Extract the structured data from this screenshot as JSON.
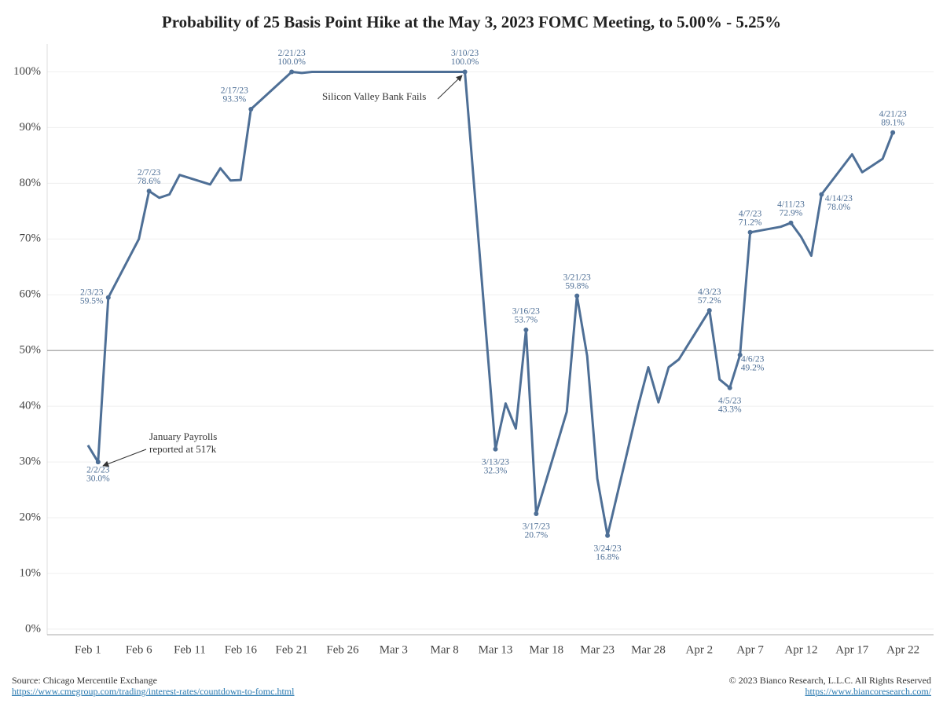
{
  "chart_data": {
    "type": "line",
    "title": "Probability of 25 Basis Point Hike at the May 3, 2023 FOMC Meeting, to 5.00% - 5.25%",
    "color": "#4e6f96",
    "x": [
      "Feb 1",
      "Feb 2",
      "Feb 3",
      "Feb 6",
      "Feb 7",
      "Feb 8",
      "Feb 9",
      "Feb 10",
      "Feb 13",
      "Feb 14",
      "Feb 15",
      "Feb 16",
      "Feb 17",
      "Feb 21",
      "Feb 22",
      "Feb 23",
      "Feb 24",
      "Feb 27",
      "Feb 28",
      "Mar 1",
      "Mar 2",
      "Mar 3",
      "Mar 6",
      "Mar 7",
      "Mar 8",
      "Mar 9",
      "Mar 10",
      "Mar 13",
      "Mar 14",
      "Mar 15",
      "Mar 16",
      "Mar 17",
      "Mar 20",
      "Mar 21",
      "Mar 22",
      "Mar 23",
      "Mar 24",
      "Mar 27",
      "Mar 28",
      "Mar 29",
      "Mar 30",
      "Mar 31",
      "Apr 3",
      "Apr 4",
      "Apr 5",
      "Apr 6",
      "Apr 7",
      "Apr 10",
      "Apr 11",
      "Apr 12",
      "Apr 13",
      "Apr 14",
      "Apr 17",
      "Apr 18",
      "Apr 19",
      "Apr 20",
      "Apr 21"
    ],
    "values": [
      33.0,
      30.0,
      59.5,
      70.0,
      78.6,
      77.4,
      78.0,
      81.5,
      79.8,
      82.7,
      80.5,
      80.6,
      93.3,
      100.0,
      99.8,
      100.0,
      100.0,
      100.0,
      100.0,
      100.0,
      100.0,
      100.0,
      100.0,
      100.0,
      100.0,
      100.0,
      100.0,
      32.3,
      40.5,
      36.0,
      53.7,
      20.7,
      39.0,
      59.8,
      49.0,
      27.0,
      16.8,
      40.0,
      47.0,
      40.7,
      47.0,
      48.4,
      57.2,
      44.8,
      43.3,
      49.2,
      71.2,
      72.2,
      72.9,
      70.4,
      67.0,
      78.0,
      85.2,
      82.0,
      83.2,
      84.4,
      89.1
    ],
    "date_labels": [
      null,
      "2/2/23",
      "2/3/23",
      null,
      "2/7/23",
      null,
      null,
      null,
      null,
      null,
      null,
      null,
      "2/17/23",
      "2/21/23",
      null,
      null,
      null,
      null,
      null,
      null,
      null,
      null,
      null,
      null,
      null,
      null,
      "3/10/23",
      "3/13/23",
      null,
      null,
      "3/16/23",
      "3/17/23",
      null,
      "3/21/23",
      null,
      null,
      "3/24/23",
      null,
      null,
      null,
      null,
      null,
      "4/3/23",
      null,
      "4/5/23",
      "4/6/23",
      "4/7/23",
      null,
      "4/11/23",
      null,
      null,
      "4/14/23",
      null,
      null,
      null,
      null,
      "4/21/23"
    ],
    "value_labels": [
      null,
      "30.0%",
      "59.5%",
      null,
      "78.6%",
      null,
      null,
      null,
      null,
      null,
      null,
      null,
      "93.3%",
      "100.0%",
      null,
      null,
      null,
      null,
      null,
      null,
      null,
      null,
      null,
      null,
      null,
      null,
      "100.0%",
      "32.3%",
      null,
      null,
      "53.7%",
      "20.7%",
      null,
      "59.8%",
      null,
      null,
      "16.8%",
      null,
      null,
      null,
      null,
      null,
      "57.2%",
      null,
      "43.3%",
      "49.2%",
      "71.2%",
      null,
      "72.9%",
      null,
      null,
      "78.0%",
      null,
      null,
      null,
      null,
      "89.1%"
    ],
    "xlim": [
      "Jan 28",
      "Apr 25"
    ],
    "xticks": [
      "Feb 1",
      "Feb 6",
      "Feb 11",
      "Feb 16",
      "Feb 21",
      "Feb 26",
      "Mar 3",
      "Mar 8",
      "Mar 13",
      "Mar 18",
      "Mar 23",
      "Mar 28",
      "Apr 2",
      "Apr 7",
      "Apr 12",
      "Apr 17",
      "Apr 22"
    ],
    "ylim": [
      -1,
      105
    ],
    "yticks": [
      {
        "value": 0,
        "label": "0%"
      },
      {
        "value": 10,
        "label": "10%"
      },
      {
        "value": 20,
        "label": "20%"
      },
      {
        "value": 30,
        "label": "30%"
      },
      {
        "value": 40,
        "label": "40%"
      },
      {
        "value": 50,
        "label": "50%"
      },
      {
        "value": 60,
        "label": "60%"
      },
      {
        "value": 70,
        "label": "70%"
      },
      {
        "value": 80,
        "label": "80%"
      },
      {
        "value": 90,
        "label": "90%"
      },
      {
        "value": 100,
        "label": "100%"
      }
    ],
    "grid": true,
    "reference_line": 50,
    "annotations": [
      {
        "lines": [
          "Silicon Valley Bank Fails"
        ]
      },
      {
        "lines": [
          "January Payrolls",
          "reported at 517k"
        ]
      }
    ],
    "source": "Source: Chicago Mercentile Exchange",
    "source_url": "https://www.cmegroup.com/trading/interest-rates/countdown-to-fomc.html",
    "copyright": "© 2023 Bianco Research, L.L.C. All Rights Reserved",
    "copyright_url": "https://www.biancoresearch.com/"
  }
}
